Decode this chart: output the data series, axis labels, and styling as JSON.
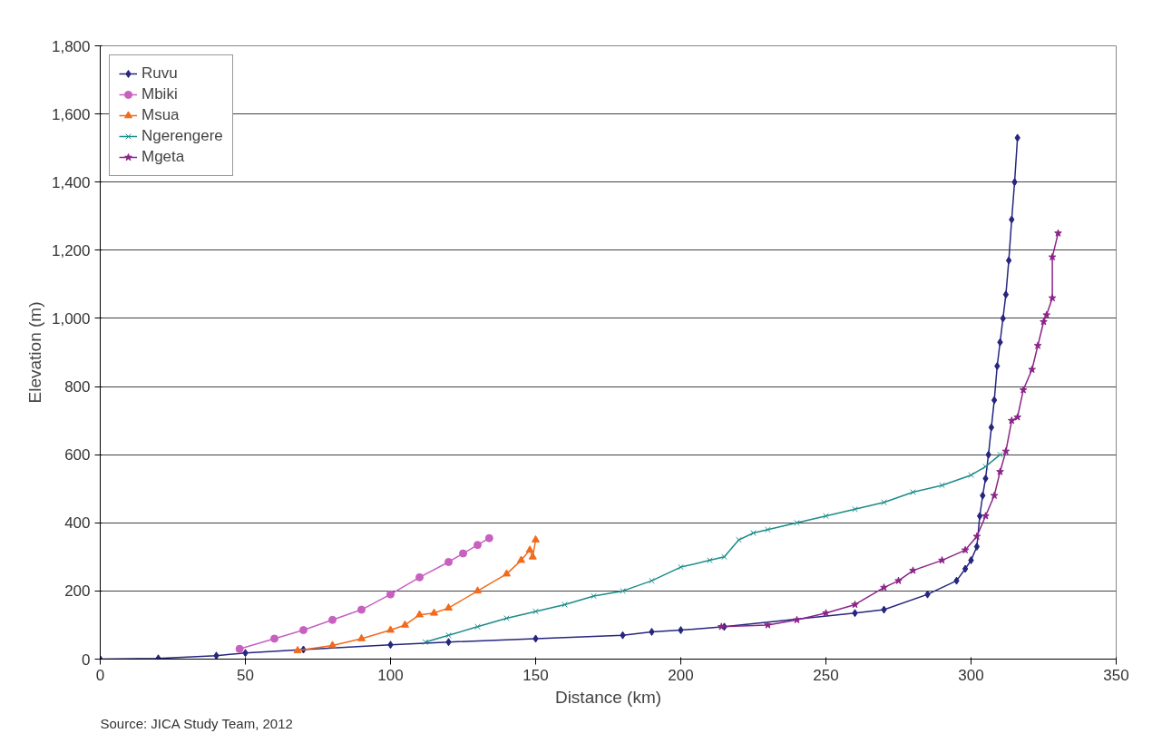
{
  "chart_data": {
    "type": "line",
    "xlabel": "Distance (km)",
    "ylabel": "Elevation (m)",
    "xlim": [
      0,
      350
    ],
    "ylim": [
      0,
      1800
    ],
    "xticks": [
      0,
      50,
      100,
      150,
      200,
      250,
      300,
      350
    ],
    "yticks": [
      0,
      {
        "value": 200,
        "label": "200"
      },
      {
        "value": 400,
        "label": "400"
      },
      {
        "value": 600,
        "label": "600"
      },
      {
        "value": 800,
        "label": "800"
      },
      {
        "value": 1000,
        "label": "1,000"
      },
      {
        "value": 1200,
        "label": "1,200"
      },
      {
        "value": 1400,
        "label": "1,400"
      },
      {
        "value": 1600,
        "label": "1,600"
      },
      {
        "value": 1800,
        "label": "1,800"
      }
    ],
    "grid": "y",
    "legend": "top left",
    "annotations": [
      "Source: JICA Study Team, 2012"
    ],
    "series": [
      {
        "name": "Ruvu",
        "color": "#26267f",
        "marker": "diamond",
        "x": [
          0,
          20,
          40,
          50,
          70,
          100,
          120,
          150,
          180,
          190,
          200,
          215,
          260,
          270,
          285,
          295,
          298,
          300,
          302,
          303,
          304,
          305,
          306,
          307,
          308,
          309,
          310,
          311,
          312,
          313,
          314,
          315,
          316
        ],
        "values": [
          0,
          2,
          10,
          18,
          28,
          42,
          50,
          60,
          70,
          80,
          85,
          95,
          135,
          145,
          190,
          230,
          265,
          290,
          330,
          420,
          480,
          530,
          600,
          680,
          760,
          860,
          930,
          1000,
          1070,
          1170,
          1290,
          1400,
          1530
        ]
      },
      {
        "name": "Mbiki",
        "color": "#c860c0",
        "marker": "circle",
        "x": [
          48,
          60,
          70,
          80,
          90,
          100,
          110,
          120,
          125,
          130,
          134
        ],
        "values": [
          30,
          60,
          85,
          115,
          145,
          190,
          240,
          285,
          310,
          335,
          355
        ]
      },
      {
        "name": "Msua",
        "color": "#f26a1b",
        "marker": "triangle",
        "x": [
          68,
          80,
          90,
          100,
          105,
          110,
          115,
          120,
          130,
          140,
          145,
          148,
          149,
          150
        ],
        "values": [
          25,
          40,
          60,
          85,
          100,
          130,
          135,
          150,
          200,
          250,
          290,
          320,
          300,
          350
        ]
      },
      {
        "name": "Ngerengere",
        "color": "#1a8c8a",
        "marker": "cross",
        "x": [
          112,
          120,
          130,
          140,
          150,
          160,
          170,
          180,
          190,
          200,
          210,
          215,
          220,
          225,
          230,
          240,
          250,
          260,
          270,
          280,
          290,
          300,
          305,
          310
        ],
        "values": [
          50,
          70,
          95,
          120,
          140,
          160,
          185,
          200,
          230,
          270,
          290,
          300,
          350,
          370,
          380,
          400,
          420,
          440,
          460,
          490,
          510,
          540,
          565,
          600
        ]
      },
      {
        "name": "Mgeta",
        "color": "#8b2389",
        "marker": "star",
        "x": [
          214,
          230,
          240,
          250,
          260,
          270,
          275,
          280,
          290,
          298,
          302,
          305,
          308,
          310,
          312,
          314,
          316,
          318,
          321,
          323,
          325,
          326,
          328,
          328,
          330
        ],
        "values": [
          95,
          100,
          115,
          135,
          160,
          210,
          230,
          260,
          290,
          320,
          360,
          420,
          480,
          550,
          610,
          700,
          710,
          790,
          850,
          920,
          990,
          1010,
          1060,
          1180,
          1250
        ]
      }
    ]
  }
}
